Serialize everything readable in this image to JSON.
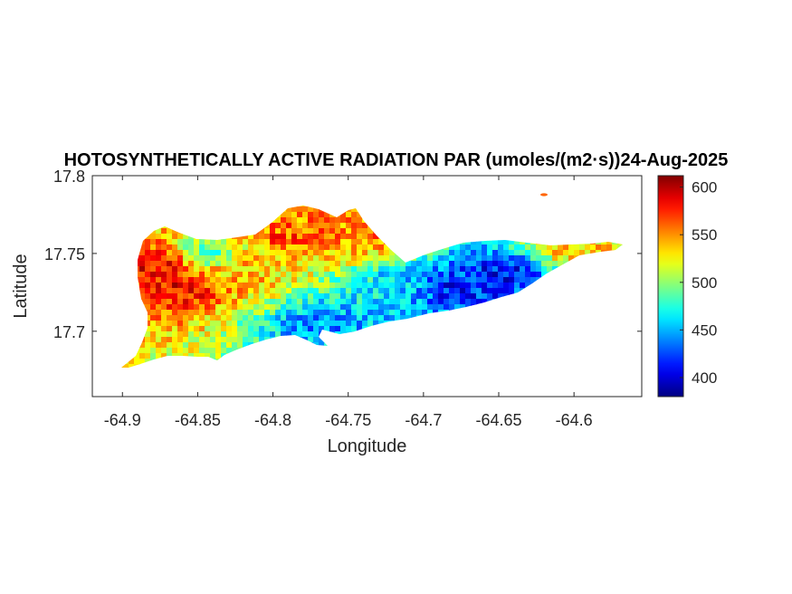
{
  "chart_data": {
    "type": "heatmap",
    "title": "HOTOSYNTHETICALLY ACTIVE RADIATION PAR (umoles/(m2·s))24-Aug-2025",
    "xlabel": "Longitude",
    "ylabel": "Latitude",
    "xlim": [
      -64.92,
      -64.555
    ],
    "ylim": [
      17.658,
      17.8
    ],
    "xticks": [
      -64.9,
      -64.85,
      -64.8,
      -64.75,
      -64.7,
      -64.65,
      -64.6
    ],
    "xtick_labels": [
      "-64.9",
      "-64.85",
      "-64.8",
      "-64.75",
      "-64.7",
      "-64.65",
      "-64.6"
    ],
    "yticks": [
      17.7,
      17.75,
      17.8
    ],
    "ytick_labels": [
      "17.7",
      "17.75",
      "17.8"
    ],
    "colorbar": {
      "colormap": "jet",
      "clim": [
        380,
        612
      ],
      "ticks": [
        400,
        450,
        500,
        550,
        600
      ],
      "tick_labels": [
        "400",
        "450",
        "500",
        "550",
        "600"
      ]
    },
    "grid": false,
    "regions": [
      {
        "lon": -64.875,
        "lat": 17.745,
        "value": 590
      },
      {
        "lon": -64.86,
        "lat": 17.73,
        "value": 585
      },
      {
        "lon": -64.845,
        "lat": 17.75,
        "value": 480
      },
      {
        "lon": -64.82,
        "lat": 17.74,
        "value": 540
      },
      {
        "lon": -64.79,
        "lat": 17.76,
        "value": 565
      },
      {
        "lon": -64.77,
        "lat": 17.705,
        "value": 440
      },
      {
        "lon": -64.74,
        "lat": 17.76,
        "value": 555
      },
      {
        "lon": -64.72,
        "lat": 17.73,
        "value": 460
      },
      {
        "lon": -64.68,
        "lat": 17.728,
        "value": 415
      },
      {
        "lon": -64.645,
        "lat": 17.738,
        "value": 410
      },
      {
        "lon": -64.6,
        "lat": 17.752,
        "value": 540
      }
    ]
  }
}
